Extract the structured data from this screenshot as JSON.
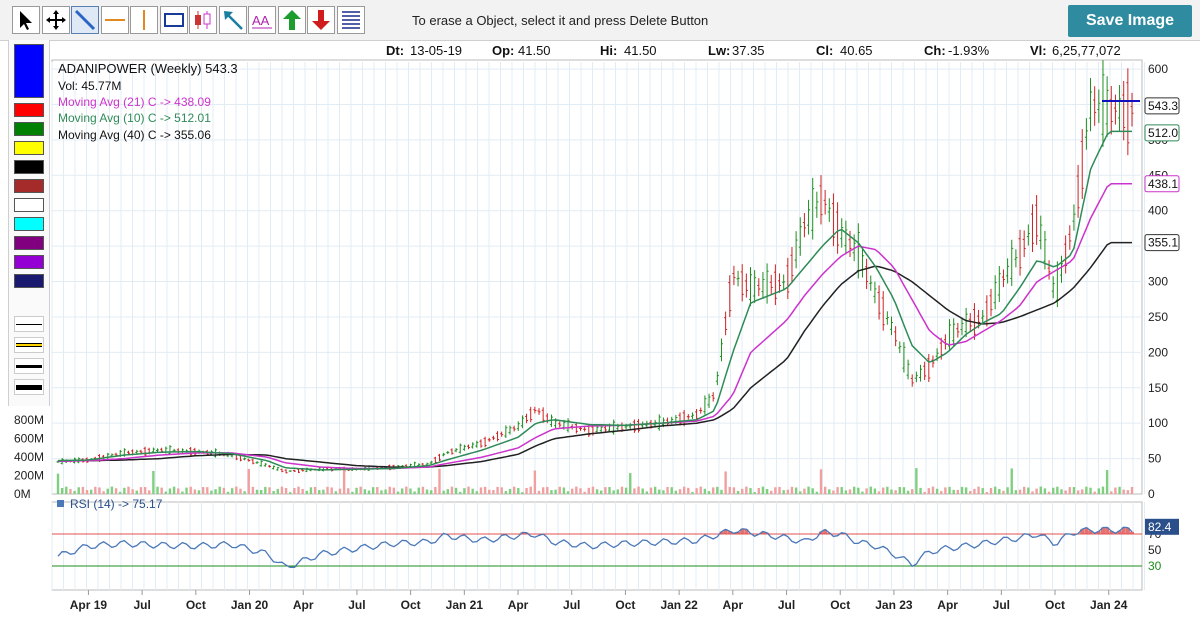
{
  "toolbar": {
    "tools": [
      {
        "name": "select-tool",
        "icon": "arrow-cursor-icon"
      },
      {
        "name": "move-tool",
        "icon": "move-arrows-icon"
      },
      {
        "name": "trendline-tool",
        "icon": "diagonal-line-icon"
      },
      {
        "name": "horizontal-line-tool",
        "icon": "horizontal-line-icon"
      },
      {
        "name": "vertical-line-tool",
        "icon": "vertical-line-icon"
      },
      {
        "name": "rectangle-tool",
        "icon": "rectangle-icon"
      },
      {
        "name": "candle-tool",
        "icon": "candlestick-icon"
      },
      {
        "name": "arrow-line-tool",
        "icon": "arrow-line-icon"
      },
      {
        "name": "text-tool",
        "icon": "text-icon"
      },
      {
        "name": "buy-arrow-tool",
        "icon": "green-up-arrow-icon"
      },
      {
        "name": "sell-arrow-tool",
        "icon": "red-down-arrow-icon"
      },
      {
        "name": "fib-lines-tool",
        "icon": "stacked-lines-icon"
      }
    ],
    "hint": "To erase a Object, select it and press Delete Button",
    "save_label": "Save Image"
  },
  "palette": {
    "colors": [
      "#0000ff",
      "#ff0000",
      "#008000",
      "#ffff00",
      "#000000",
      "#a52a2a",
      "#ffffff",
      "#00ffff",
      "#800080",
      "#9400d3",
      "#191970"
    ],
    "line_widths": [
      1,
      2,
      3,
      5
    ]
  },
  "info": {
    "date_label": "Dt:",
    "date": "13-05-19",
    "open_label": "Op:",
    "open": "41.50",
    "high_label": "Hi:",
    "high": "41.50",
    "low_label": "Lw:",
    "low": "37.35",
    "close_label": "Cl:",
    "close": "40.65",
    "change_label": "Ch:",
    "change": "-1.93%",
    "volume_label": "Vl:",
    "volume": "6,25,77,072"
  },
  "legend": {
    "title": "ADANIPOWER (Weekly) 543.3",
    "volume": "Vol: 45.77M",
    "ma21": "Moving Avg (21) C -> 438.09",
    "ma10": "Moving Avg (10) C -> 512.01",
    "ma40": "Moving Avg (40) C -> 355.06",
    "rsi": "RSI (14) -> 75.17"
  },
  "colors": {
    "ma21": "#cc33cc",
    "ma10": "#2e8b57",
    "ma40": "#222222",
    "up": "#1e8e1e",
    "down": "#cc2222",
    "rsi": "#4a78b8",
    "rsi_overbought": "#e05050",
    "rsi_oversold": "#1e8e1e",
    "level_line": "#1010c0"
  },
  "chart_data": {
    "type": "candlestick",
    "price_axis": {
      "ylim": [
        0,
        610
      ],
      "ticks": [
        0,
        50,
        100,
        150,
        200,
        250,
        300,
        350,
        400,
        450,
        500,
        550,
        600
      ]
    },
    "volume_axis": {
      "ticks": [
        "0M",
        "200M",
        "400M",
        "600M",
        "800M"
      ],
      "ylim_millions": [
        0,
        800
      ]
    },
    "rsi_axis": {
      "ticks": [
        30,
        50,
        70
      ],
      "period": 14,
      "current": 75.17,
      "label": "82.4"
    },
    "x_axis_ticks": [
      "Apr 19",
      "Jul",
      "Oct",
      "Jan 20",
      "Apr",
      "Jul",
      "Oct",
      "Jan 21",
      "Apr",
      "Jul",
      "Oct",
      "Jan 22",
      "Apr",
      "Jul",
      "Oct",
      "Jan 23",
      "Apr",
      "Jul",
      "Oct",
      "Jan 24"
    ],
    "last_values": {
      "close": "543.3",
      "ma10": "512.0",
      "ma21": "438.1",
      "ma40": "355.1"
    },
    "level_line_value": 555,
    "close_series": {
      "x": [
        "2019-02",
        "2019-04",
        "2019-06",
        "2019-08",
        "2019-10",
        "2019-12",
        "2020-02",
        "2020-03",
        "2020-05",
        "2020-07",
        "2020-09",
        "2020-11",
        "2020-12",
        "2021-02",
        "2021-04",
        "2021-05",
        "2021-06",
        "2021-08",
        "2021-10",
        "2021-12",
        "2022-02",
        "2022-03",
        "2022-04",
        "2022-05",
        "2022-07",
        "2022-08",
        "2022-09",
        "2022-10",
        "2022-11",
        "2022-12",
        "2023-01",
        "2023-02",
        "2023-03",
        "2023-04",
        "2023-05",
        "2023-06",
        "2023-07",
        "2023-08",
        "2023-09",
        "2023-10",
        "2023-11",
        "2023-12",
        "2024-01"
      ],
      "y": [
        45,
        48,
        58,
        62,
        60,
        55,
        40,
        32,
        35,
        35,
        38,
        42,
        58,
        72,
        95,
        120,
        100,
        90,
        95,
        100,
        112,
        140,
        310,
        290,
        300,
        380,
        420,
        370,
        340,
        280,
        230,
        160,
        180,
        220,
        240,
        250,
        300,
        340,
        390,
        280,
        380,
        550,
        543
      ]
    },
    "ma10": [
      47,
      48,
      55,
      59,
      60,
      57,
      47,
      37,
      34,
      35,
      36,
      40,
      48,
      62,
      80,
      100,
      105,
      98,
      97,
      100,
      105,
      118,
      200,
      270,
      290,
      320,
      350,
      375,
      355,
      320,
      275,
      210,
      185,
      200,
      225,
      242,
      255,
      290,
      330,
      320,
      340,
      460,
      512
    ],
    "ma21": [
      46,
      47,
      50,
      55,
      58,
      58,
      52,
      44,
      38,
      36,
      36,
      38,
      43,
      52,
      65,
      80,
      92,
      96,
      97,
      100,
      103,
      110,
      140,
      200,
      245,
      280,
      310,
      335,
      350,
      345,
      320,
      275,
      230,
      210,
      215,
      230,
      245,
      265,
      300,
      315,
      330,
      390,
      438
    ],
    "ma40": [
      47,
      47,
      48,
      50,
      54,
      56,
      55,
      50,
      45,
      40,
      38,
      38,
      40,
      46,
      56,
      68,
      78,
      85,
      90,
      96,
      100,
      105,
      120,
      150,
      190,
      230,
      265,
      295,
      315,
      322,
      315,
      300,
      280,
      260,
      245,
      240,
      242,
      250,
      260,
      270,
      290,
      320,
      355
    ],
    "rsi": [
      40,
      55,
      58,
      56,
      55,
      57,
      45,
      28,
      45,
      52,
      58,
      60,
      68,
      62,
      68,
      70,
      60,
      55,
      58,
      60,
      62,
      68,
      75,
      72,
      65,
      60,
      72,
      70,
      60,
      55,
      45,
      32,
      48,
      52,
      55,
      58,
      62,
      65,
      70,
      58,
      72,
      75,
      75
    ]
  }
}
